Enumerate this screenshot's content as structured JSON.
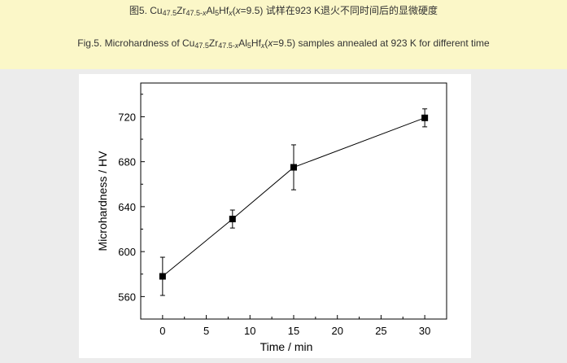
{
  "caption_zh": {
    "prefix": "图5. Cu",
    "sub1": "47.5",
    "zr": "Zr",
    "sub2": "47.5-",
    "sub2_var": "x",
    "al": "Al",
    "sub3": "5",
    "hf": "Hf",
    "sub4_var": "x",
    "paren_open": "(",
    "var": "x",
    "paren_rest": "=9.5)",
    "suffix": " 试样在923 K退火不同时间后的显微硬度"
  },
  "caption_en": {
    "prefix": "Fig.5. Microhardness of Cu",
    "sub1": "47.5",
    "zr": "Zr",
    "sub2": "47.5-",
    "sub2_var": "x",
    "al": "Al",
    "sub3": "5",
    "hf": "Hf",
    "sub4_var": "x",
    "paren_open": "(",
    "var": "x",
    "paren_rest": "=9.5)",
    "suffix": " samples annealed at 923 K for different time"
  },
  "chart_data": {
    "type": "line",
    "xlabel": "Time / min",
    "ylabel": "Microhardness / HV",
    "xlim": [
      -2.5,
      32.5
    ],
    "ylim": [
      540,
      750
    ],
    "xticks": [
      0,
      5,
      10,
      15,
      20,
      25,
      30
    ],
    "yticks": [
      560,
      600,
      640,
      680,
      720
    ],
    "xtick_labels": [
      "0",
      "5",
      "10",
      "15",
      "20",
      "25",
      "30"
    ],
    "ytick_labels": [
      "560",
      "600",
      "640",
      "680",
      "720"
    ],
    "marker": "square",
    "error_bars": true,
    "grid": false,
    "series": [
      {
        "x": [
          0,
          8,
          15,
          30
        ],
        "values": [
          578,
          629,
          675,
          719
        ],
        "error": [
          17,
          8,
          20,
          8
        ]
      }
    ],
    "colors": {
      "line": "#000000",
      "background": "#ececec",
      "caption_band": "#fbf7c8"
    }
  }
}
